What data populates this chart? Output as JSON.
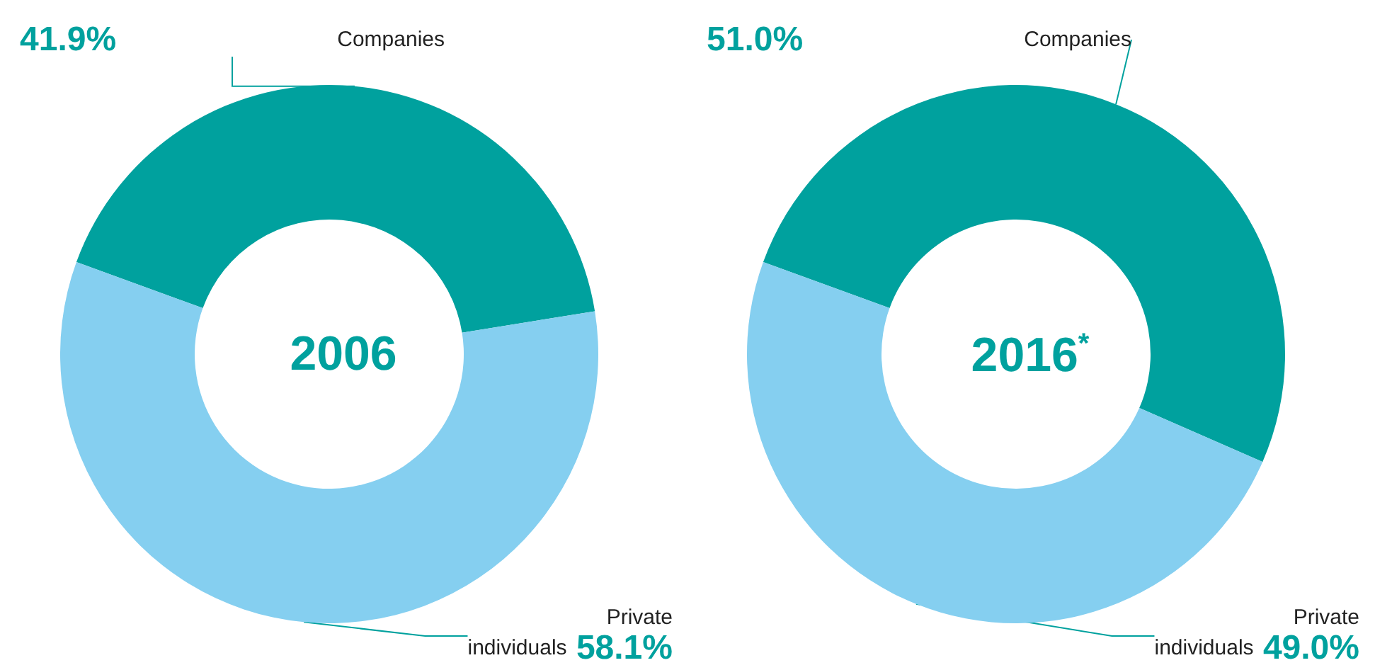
{
  "chart_data": [
    {
      "type": "donut",
      "title": "2006",
      "categories": [
        "Companies",
        "Private individuals"
      ],
      "values": [
        41.9,
        58.1
      ],
      "value_labels": [
        "41.9%",
        "58.1%"
      ],
      "colors": [
        "#00a19e",
        "#85cff0"
      ],
      "legend": false
    },
    {
      "type": "donut",
      "title": "2016$^{*}$",
      "categories": [
        "Companies",
        "Private individuals"
      ],
      "values": [
        51.0,
        49.0
      ],
      "value_labels": [
        "51.0%",
        "49.0%"
      ],
      "colors": [
        "#00a19e",
        "#85cff0"
      ],
      "legend": false
    }
  ]
}
